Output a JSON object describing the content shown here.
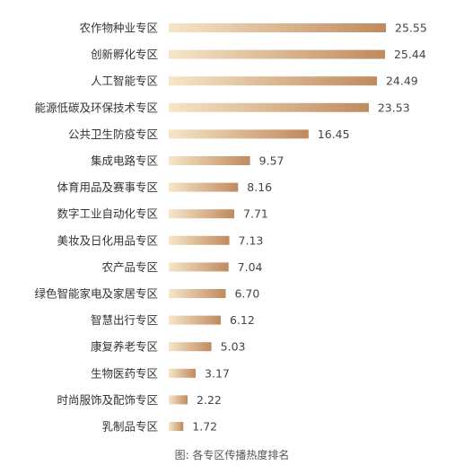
{
  "chart_data": {
    "type": "bar",
    "orientation": "horizontal",
    "categories": [
      "农作物种业专区",
      "创新孵化专区",
      "人工智能专区",
      "能源低碳及环保技术专区",
      "公共卫生防疫专区",
      "集成电路专区",
      "体育用品及赛事专区",
      "数字工业自动化专区",
      "美妆及日化用品专区",
      "农产品专区",
      "绿色智能家电及家居专区",
      "智慧出行专区",
      "康复养老专区",
      "生物医药专区",
      "时尚服饰及配饰专区",
      "乳制品专区"
    ],
    "values": [
      25.55,
      25.44,
      24.49,
      23.53,
      16.45,
      9.57,
      8.16,
      7.71,
      7.13,
      7.04,
      6.7,
      6.12,
      5.03,
      3.17,
      2.22,
      1.72
    ],
    "value_labels": [
      "25.55",
      "25.44",
      "24.49",
      "23.53",
      "16.45",
      "9.57",
      "8.16",
      "7.71",
      "7.13",
      "7.04",
      "6.70",
      "6.12",
      "5.03",
      "3.17",
      "2.22",
      "1.72"
    ],
    "caption": "图: 各专区传播热度排名",
    "xlim": [
      0,
      25.55
    ],
    "grid": false,
    "legend": "none",
    "colors": {
      "bar_start": "#f6e6c8",
      "bar_end": "#c08a5e",
      "label": "#333333",
      "value": "#444444",
      "caption": "#555555"
    }
  }
}
